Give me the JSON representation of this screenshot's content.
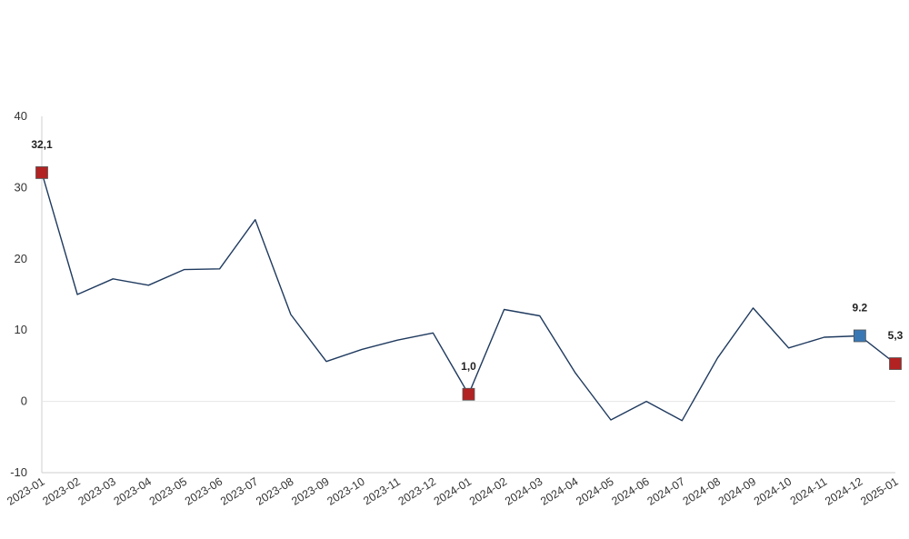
{
  "chart_data": {
    "type": "line",
    "title": "",
    "xlabel": "",
    "ylabel": "",
    "categories": [
      "2023-01",
      "2023-02",
      "2023-03",
      "2023-04",
      "2023-05",
      "2023-06",
      "2023-07",
      "2023-08",
      "2023-09",
      "2023-10",
      "2023-11",
      "2023-12",
      "2024-01",
      "2024-02",
      "2024-03",
      "2024-04",
      "2024-05",
      "2024-06",
      "2024-07",
      "2024-08",
      "2024-09",
      "2024-10",
      "2024-11",
      "2024-12",
      "2025-01"
    ],
    "series": [
      {
        "values": [
          32.1,
          15.0,
          17.2,
          16.3,
          18.5,
          18.6,
          25.5,
          12.2,
          5.6,
          7.3,
          8.6,
          9.6,
          1.0,
          12.9,
          12.0,
          4.0,
          -2.6,
          0.0,
          -2.7,
          6.1,
          13.1,
          7.5,
          9.0,
          9.2,
          5.3
        ],
        "color": "#1f3a5f"
      }
    ],
    "ylim": [
      -10,
      40
    ],
    "yticks": [
      -10,
      0,
      10,
      20,
      30,
      40
    ],
    "grid": false,
    "highlights": [
      {
        "index": 0,
        "label": "32,1",
        "color": "#b22222"
      },
      {
        "index": 12,
        "label": "1,0",
        "color": "#b22222"
      },
      {
        "index": 23,
        "label": "9.2",
        "color": "#3a78b5"
      },
      {
        "index": 24,
        "label": "5,3",
        "color": "#b22222"
      }
    ],
    "zero_line_color": "#e6e6e6",
    "axis_color": "#cfcfcf"
  }
}
